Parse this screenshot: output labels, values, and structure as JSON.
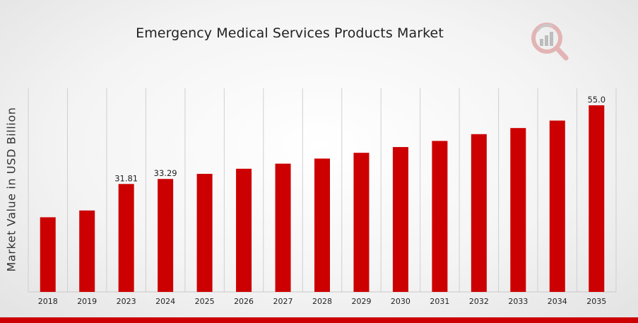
{
  "colors": {
    "bar": "#cc0000",
    "grid": "#cfcfcf",
    "accent": "#cc0000",
    "logo": "#d9a0a0"
  },
  "logo": {
    "icon": "magnifier-chart-logo"
  },
  "chart_data": {
    "type": "bar",
    "title": "Emergency Medical Services Products Market",
    "xlabel": "",
    "ylabel": "Market Value in USD Billion",
    "categories": [
      "2018",
      "2019",
      "2023",
      "2024",
      "2025",
      "2026",
      "2027",
      "2028",
      "2029",
      "2030",
      "2031",
      "2032",
      "2033",
      "2034",
      "2035"
    ],
    "values": [
      22.0,
      24.0,
      31.81,
      33.29,
      34.8,
      36.3,
      37.8,
      39.3,
      41.0,
      42.7,
      44.5,
      46.5,
      48.3,
      50.5,
      55.0
    ],
    "data_labels": [
      {
        "index": 2,
        "text": "31.81"
      },
      {
        "index": 3,
        "text": "33.29"
      },
      {
        "index": 14,
        "text": "55.0"
      }
    ],
    "ylim": [
      0,
      60
    ],
    "grid": "vertical",
    "legend": "none"
  }
}
